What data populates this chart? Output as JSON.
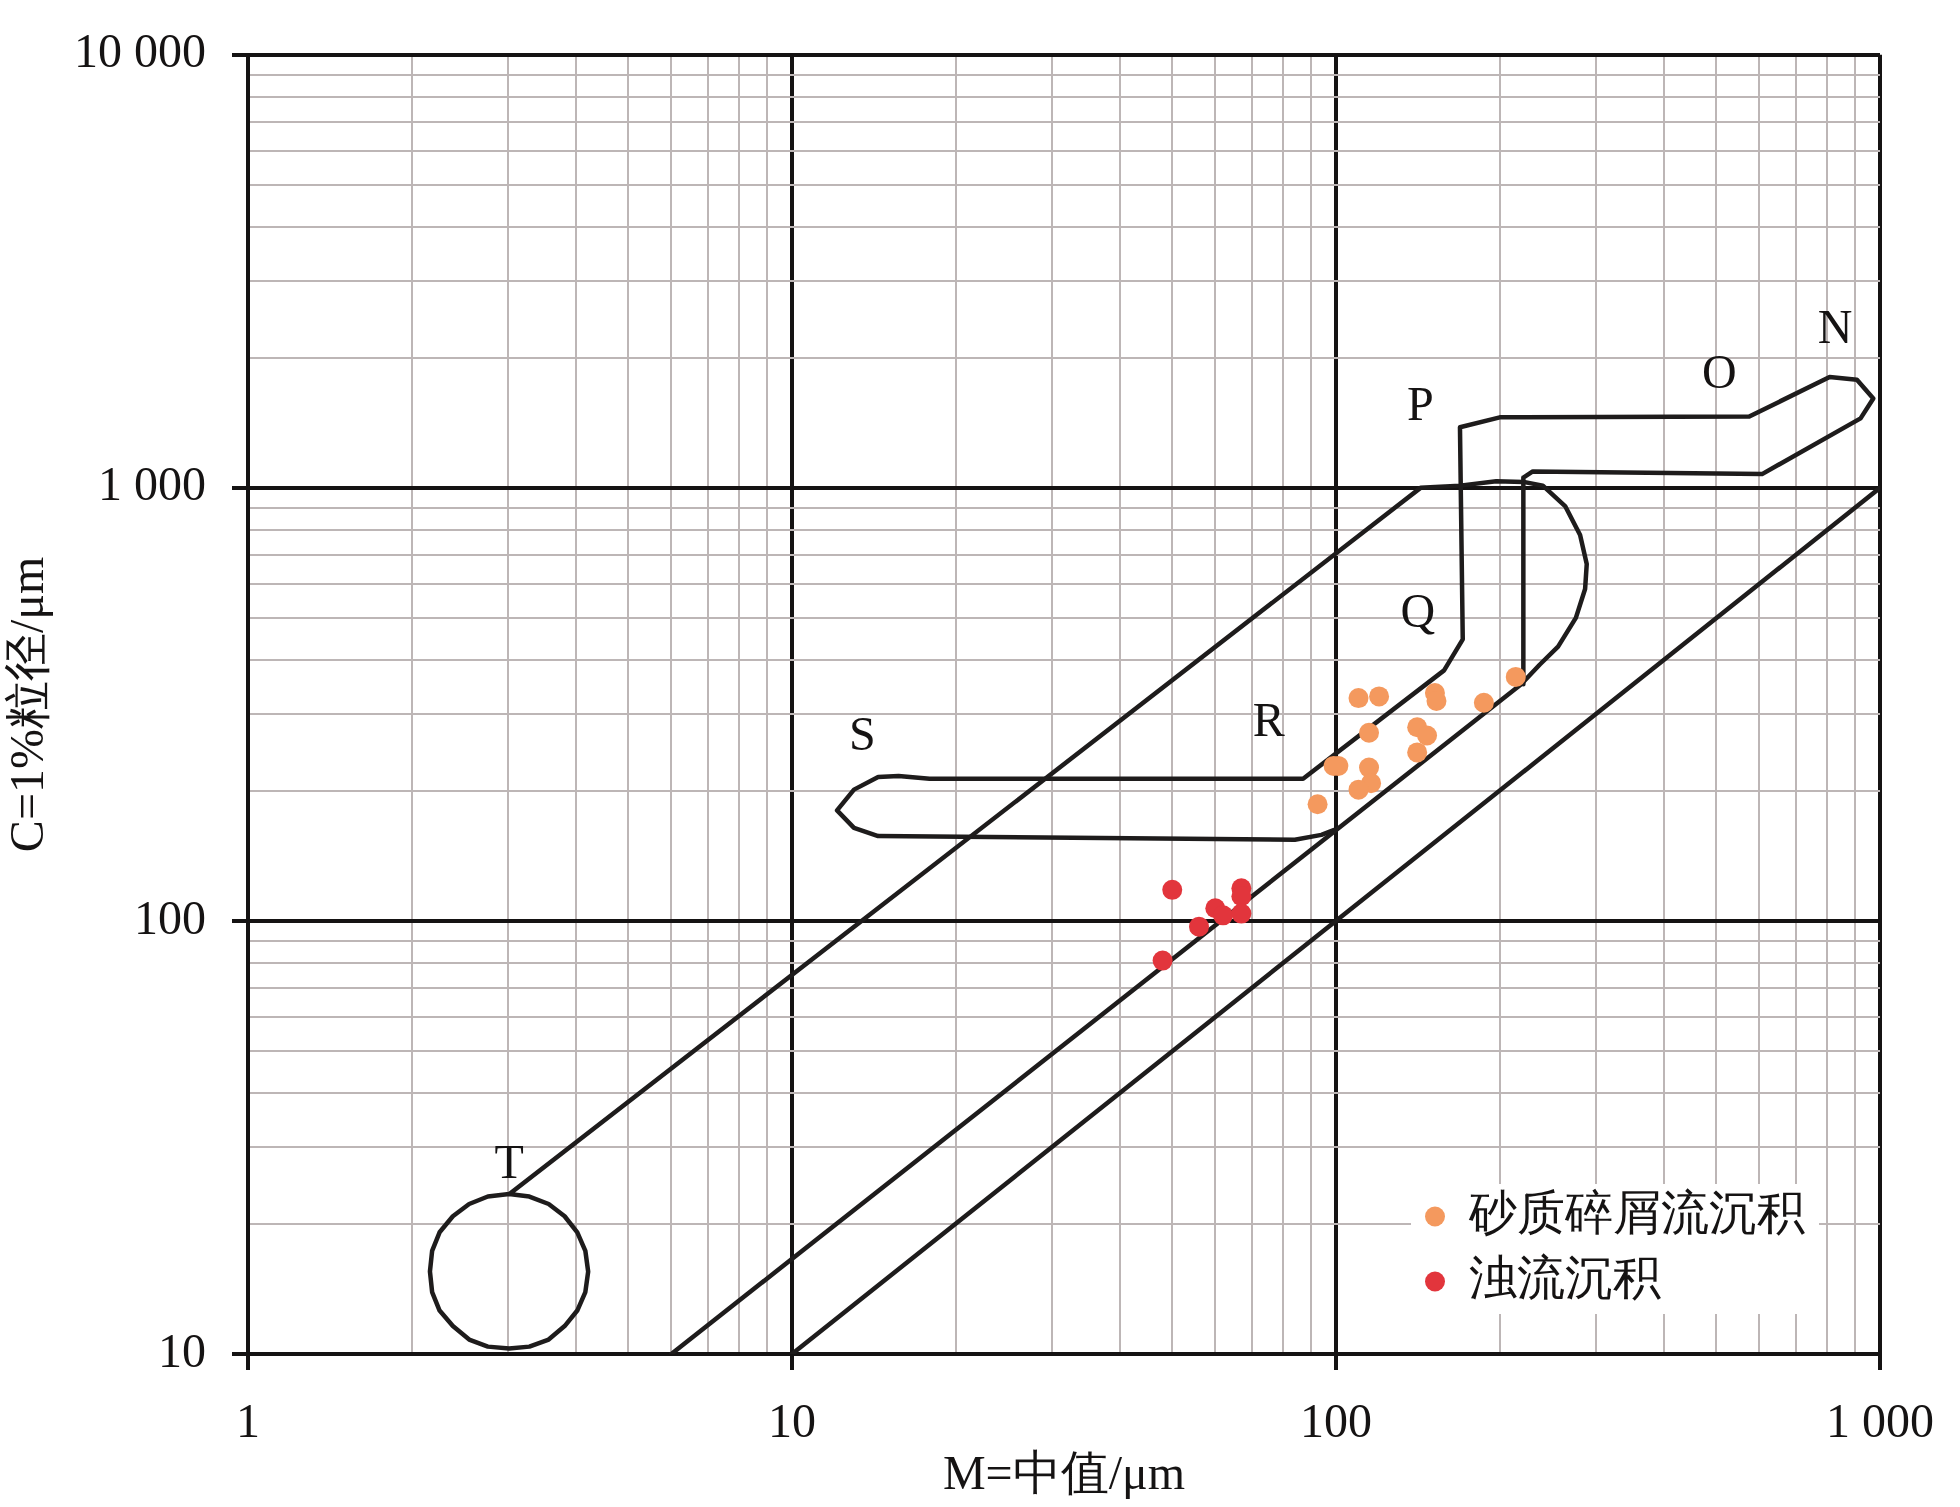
{
  "chart_data": {
    "type": "scatter",
    "xlabel": "M=中值/μm",
    "ylabel": "C=1%粒径/μm",
    "log": "xy",
    "xlim": [
      1,
      1000
    ],
    "ylim": [
      10,
      10000
    ],
    "xticks": [
      1,
      {
        "value": 2,
        "label": null
      },
      {
        "value": 3,
        "label": null
      },
      {
        "value": 4,
        "label": null
      },
      {
        "value": 5,
        "label": null
      },
      {
        "value": 6,
        "label": null
      },
      {
        "value": 7,
        "label": null
      },
      {
        "value": 8,
        "label": null
      },
      {
        "value": 9,
        "label": null
      },
      10,
      {
        "value": 20,
        "label": null
      },
      {
        "value": 30,
        "label": null
      },
      {
        "value": 40,
        "label": null
      },
      {
        "value": 50,
        "label": null
      },
      {
        "value": 60,
        "label": null
      },
      {
        "value": 70,
        "label": null
      },
      {
        "value": 80,
        "label": null
      },
      {
        "value": 90,
        "label": null
      },
      100,
      {
        "value": 200,
        "label": null
      },
      {
        "value": 300,
        "label": null
      },
      {
        "value": 400,
        "label": null
      },
      {
        "value": 500,
        "label": null
      },
      {
        "value": 600,
        "label": null
      },
      {
        "value": 700,
        "label": null
      },
      {
        "value": 800,
        "label": null
      },
      {
        "value": 900,
        "label": null
      },
      {
        "value": 1000,
        "label": "1 000"
      }
    ],
    "yticks": [
      10,
      {
        "value": 20,
        "label": null
      },
      {
        "value": 30,
        "label": null
      },
      {
        "value": 40,
        "label": null
      },
      {
        "value": 50,
        "label": null
      },
      {
        "value": 60,
        "label": null
      },
      {
        "value": 70,
        "label": null
      },
      {
        "value": 80,
        "label": null
      },
      {
        "value": 90,
        "label": null
      },
      100,
      {
        "value": 200,
        "label": null
      },
      {
        "value": 300,
        "label": null
      },
      {
        "value": 400,
        "label": null
      },
      {
        "value": 500,
        "label": null
      },
      {
        "value": 600,
        "label": null
      },
      {
        "value": 700,
        "label": null
      },
      {
        "value": 800,
        "label": null
      },
      {
        "value": 900,
        "label": null
      },
      {
        "value": 1000,
        "label": "1 000"
      },
      {
        "value": 2000,
        "label": null
      },
      {
        "value": 3000,
        "label": null
      },
      {
        "value": 4000,
        "label": null
      },
      {
        "value": 5000,
        "label": null
      },
      {
        "value": 6000,
        "label": null
      },
      {
        "value": 7000,
        "label": null
      },
      {
        "value": 8000,
        "label": null
      },
      {
        "value": 9000,
        "label": null
      },
      {
        "value": 10000,
        "label": "10 000"
      }
    ],
    "grid": true,
    "legend": "bottom right",
    "marker": "circle",
    "series": [
      {
        "name": "砂质碎屑流沉积",
        "color": "#f4995e",
        "x": [
          110,
          120,
          152,
          153,
          187,
          214,
          115,
          141,
          147,
          141,
          99,
          101,
          115,
          116,
          110,
          92.5
        ],
        "values": [
          327,
          330,
          336,
          322,
          319,
          366,
          272,
          280,
          268,
          245,
          228,
          228,
          226,
          208,
          201,
          186
        ]
      },
      {
        "name": "浊流沉积",
        "color": "#e2353c",
        "x": [
          50,
          67,
          67,
          60,
          62,
          67,
          56,
          48
        ],
        "values": [
          118,
          119,
          114,
          107,
          103,
          104,
          97,
          81
        ]
      },
      {
        "type": "line",
        "color": "#1e1c1c",
        "marker": "none",
        "x": [
          6,
          219,
          237,
          256,
          276,
          287,
          289,
          281,
          264,
          240,
          221,
          197,
          169,
          143,
          3.02,
          2.76,
          2.55,
          2.38,
          2.25,
          2.18,
          2.16,
          2.18,
          2.25,
          2.38,
          2.55,
          2.76,
          3.02,
          3.29,
          3.57,
          3.82,
          4.03,
          4.17,
          4.22,
          4.17,
          4.03,
          3.82,
          3.57,
          3.29,
          3.02
        ],
        "values": [
          10,
          352,
          391,
          430,
          501,
          584,
          667,
          778,
          906,
          1012,
          1032,
          1036,
          1012,
          1000,
          23.4,
          23.1,
          22.2,
          20.8,
          19.1,
          17.3,
          15.5,
          13.9,
          12.6,
          11.6,
          10.8,
          10.4,
          10.3,
          10.4,
          10.8,
          11.6,
          12.6,
          13.9,
          15.5,
          17.3,
          19.1,
          20.8,
          22.2,
          23.1,
          23.4
        ]
      },
      {
        "type": "line",
        "color": "#1e1c1c",
        "marker": "none",
        "x": [
          99,
          94,
          84,
          14.4,
          13,
          12.1,
          13,
          14.4,
          15.7,
          17.9,
          87,
          158,
          171,
          169,
          200,
          575,
          808,
          907,
          972,
          921,
          607,
          230,
          221,
          221
        ],
        "values": [
          162,
          158,
          154,
          157,
          164,
          180,
          201,
          215,
          216,
          213,
          213,
          379,
          447,
          1380,
          1455,
          1461,
          1804,
          1777,
          1608,
          1447,
          1076,
          1091,
          1056,
          352
        ]
      },
      {
        "type": "line",
        "color": "#1e1c1c",
        "marker": "none",
        "x": [
          10,
          1000
        ],
        "values": [
          10,
          1000
        ]
      }
    ],
    "annotations": [
      "N",
      "O",
      "P",
      "Q",
      "R",
      "S",
      "T"
    ]
  }
}
